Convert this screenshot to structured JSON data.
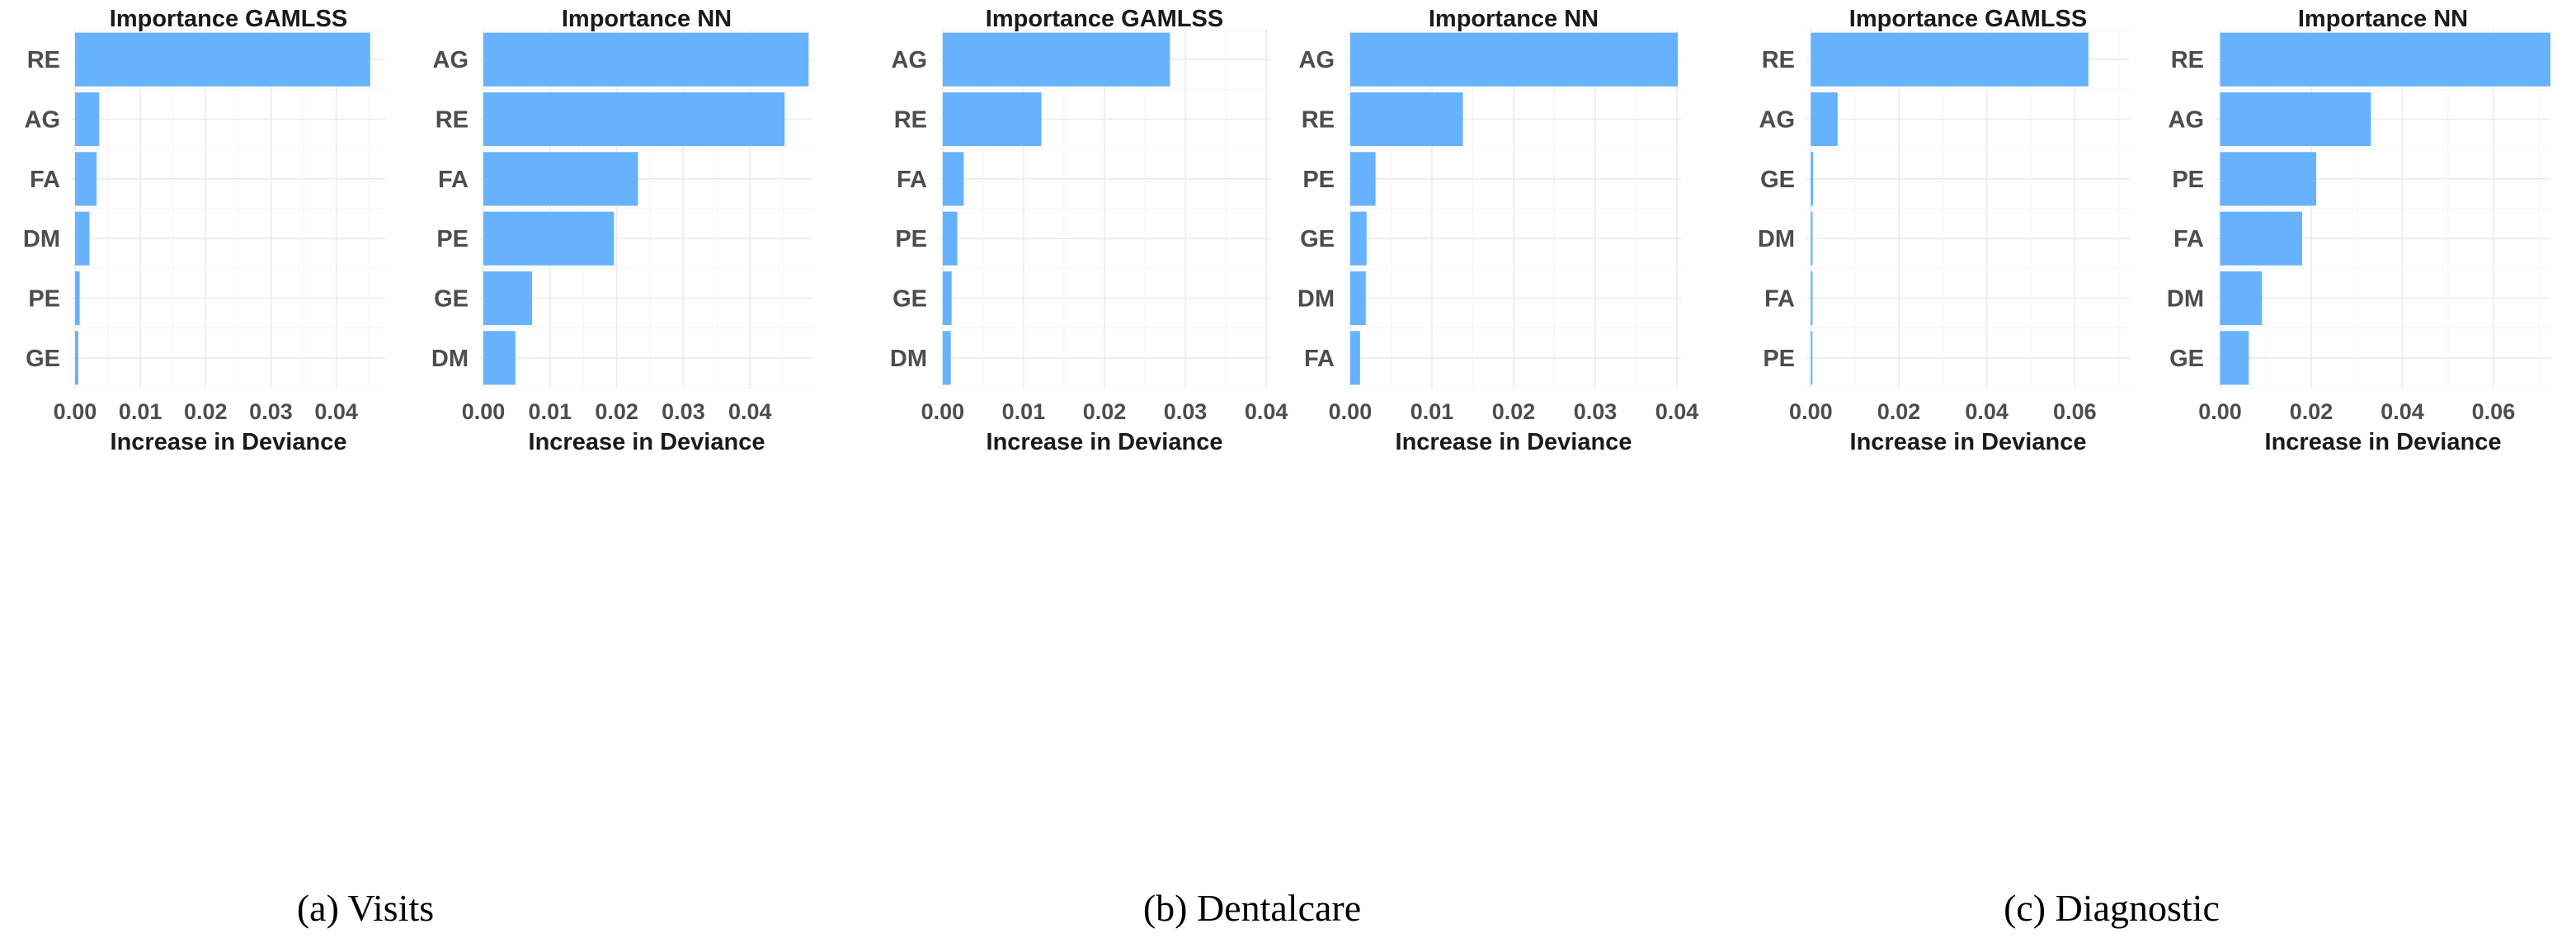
{
  "chart_data": [
    {
      "group": "(a) Visits",
      "panels": [
        {
          "type": "bar",
          "orientation": "horizontal",
          "title": "Importance GAMLSS",
          "xlabel": "Increase in Deviance",
          "categories": [
            "RE",
            "AG",
            "FA",
            "DM",
            "PE",
            "GE"
          ],
          "values": [
            0.0452,
            0.0037,
            0.0033,
            0.0022,
            0.0007,
            0.0005
          ],
          "xlim": [
            -0.0005,
            0.0475
          ],
          "xticks": [
            0.0,
            0.01,
            0.02,
            0.03,
            0.04
          ],
          "xtick_labels": [
            "0.00",
            "0.01",
            "0.02",
            "0.03",
            "0.04"
          ],
          "color": "#66b2ff"
        },
        {
          "type": "bar",
          "orientation": "horizontal",
          "title": "Importance NN",
          "xlabel": "Increase in Deviance",
          "categories": [
            "AG",
            "RE",
            "FA",
            "PE",
            "GE",
            "DM"
          ],
          "values": [
            0.0488,
            0.0452,
            0.0232,
            0.0196,
            0.0073,
            0.0048
          ],
          "xlim": [
            -0.0005,
            0.0495
          ],
          "xticks": [
            0.0,
            0.01,
            0.02,
            0.03,
            0.04
          ],
          "xtick_labels": [
            "0.00",
            "0.01",
            "0.02",
            "0.03",
            "0.04"
          ],
          "color": "#66b2ff"
        }
      ]
    },
    {
      "group": "(b) Dentalcare",
      "panels": [
        {
          "type": "bar",
          "orientation": "horizontal",
          "title": "Importance GAMLSS",
          "xlabel": "Increase in Deviance",
          "categories": [
            "AG",
            "RE",
            "FA",
            "PE",
            "GE",
            "DM"
          ],
          "values": [
            0.0281,
            0.0122,
            0.0026,
            0.0018,
            0.0011,
            0.001
          ],
          "xlim": [
            -0.0005,
            0.0405
          ],
          "xticks": [
            0.0,
            0.01,
            0.02,
            0.03,
            0.04
          ],
          "xtick_labels": [
            "0.00",
            "0.01",
            "0.02",
            "0.03",
            "0.04"
          ],
          "color": "#66b2ff"
        },
        {
          "type": "bar",
          "orientation": "horizontal",
          "title": "Importance NN",
          "xlabel": "Increase in Deviance",
          "categories": [
            "AG",
            "RE",
            "PE",
            "GE",
            "DM",
            "FA"
          ],
          "values": [
            0.0401,
            0.0138,
            0.0031,
            0.002,
            0.0019,
            0.0012
          ],
          "xlim": [
            -0.0005,
            0.0405
          ],
          "xticks": [
            0.0,
            0.01,
            0.02,
            0.03,
            0.04
          ],
          "xtick_labels": [
            "0.00",
            "0.01",
            "0.02",
            "0.03",
            "0.04"
          ],
          "color": "#66b2ff"
        }
      ]
    },
    {
      "group": "(c) Diagnostic",
      "panels": [
        {
          "type": "bar",
          "orientation": "horizontal",
          "title": "Importance GAMLSS",
          "xlabel": "Increase in Deviance",
          "categories": [
            "RE",
            "AG",
            "GE",
            "DM",
            "FA",
            "PE"
          ],
          "values": [
            0.0631,
            0.0061,
            0.0005,
            0.0004,
            0.0004,
            0.0003
          ],
          "xlim": [
            -0.001,
            0.0725
          ],
          "xticks": [
            0.0,
            0.02,
            0.04,
            0.06
          ],
          "xtick_labels": [
            "0.00",
            "0.02",
            "0.04",
            "0.06"
          ],
          "color": "#66b2ff"
        },
        {
          "type": "bar",
          "orientation": "horizontal",
          "title": "Importance NN",
          "xlabel": "Increase in Deviance",
          "categories": [
            "RE",
            "AG",
            "PE",
            "FA",
            "DM",
            "GE"
          ],
          "values": [
            0.0725,
            0.0331,
            0.0211,
            0.018,
            0.0092,
            0.0063
          ],
          "xlim": [
            -0.001,
            0.0725
          ],
          "xticks": [
            0.0,
            0.02,
            0.04,
            0.06
          ],
          "xtick_labels": [
            "0.00",
            "0.02",
            "0.04",
            "0.06"
          ],
          "color": "#66b2ff"
        }
      ]
    }
  ]
}
